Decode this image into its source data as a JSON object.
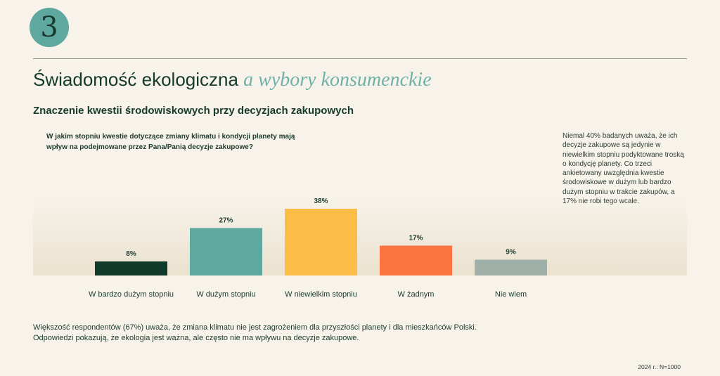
{
  "badge": {
    "number": "3"
  },
  "title": {
    "main": "Świadomość ekologiczna",
    "accent": "a wybory konsumenckie"
  },
  "subtitle": "Znaczenie kwestii środowiskowych przy decyzjach zakupowych",
  "question": "W jakim stopniu kwestie dotyczące zmiany klimatu i kondycji planety mają wpływ na podejmowane przez Pana/Panią decyzje zakupowe?",
  "note": "Niemal 40% badanych uważa, że ich decyzje zakupowe są jedynie w niewielkim stopniu podyktowane troską o kondycję planety. Co trzeci ankietowany uwzględnia kwestie środowiskowe w dużym lub bardzo dużym stopniu w trakcie zakupów, a 17% nie robi tego wcale.",
  "footer": {
    "line1": "Większość respondentów (67%) uważa, że zmiana klimatu nie jest zagrożeniem dla przyszłości planety i dla mieszkańców Polski.",
    "line2": "Odpowiedzi pokazują, że ekologia jest ważna, ale często nie ma wpływu na decyzje zakupowe."
  },
  "source": "2024 r.: N=1000",
  "chart_data": {
    "type": "bar",
    "categories": [
      "W bardzo dużym stopniu",
      "W dużym stopniu",
      "W niewielkim stopniu",
      "W żadnym",
      "Nie wiem"
    ],
    "values": [
      8,
      27,
      38,
      17,
      9
    ],
    "value_labels": [
      "8%",
      "27%",
      "38%",
      "17%",
      "9%"
    ],
    "colors": [
      "#123a2a",
      "#5fa8a0",
      "#fbbd45",
      "#fb7440",
      "#9fb0a8"
    ],
    "unit": "%",
    "ylim": [
      0,
      38
    ],
    "grid": false
  }
}
